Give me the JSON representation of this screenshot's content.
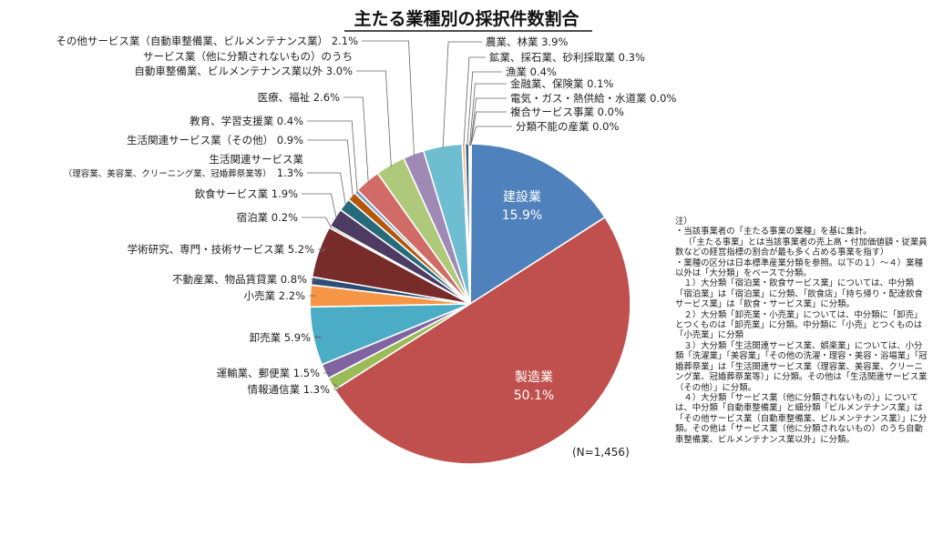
{
  "chart_data": {
    "type": "pie",
    "title": "主たる業種別の採択件数割合",
    "n_label": "(N=1,456)",
    "slices": [
      {
        "label": "建設業",
        "value": 15.9,
        "color": "#4f81bd"
      },
      {
        "label": "製造業",
        "value": 50.1,
        "color": "#c0504d"
      },
      {
        "label": "情報通信業",
        "value": 1.3,
        "color": "#9bbb59"
      },
      {
        "label": "運輸業、郵便業",
        "value": 1.5,
        "color": "#8064a2"
      },
      {
        "label": "卸売業",
        "value": 5.9,
        "color": "#4bacc6"
      },
      {
        "label": "小売業",
        "value": 2.2,
        "color": "#f79646"
      },
      {
        "label": "不動産業、物品賃貸業",
        "value": 0.8,
        "color": "#2c4d75"
      },
      {
        "label": "学術研究、専門・技術サービス業",
        "value": 5.2,
        "color": "#772c2a"
      },
      {
        "label": "宿泊業",
        "value": 0.2,
        "color": "#5f7530"
      },
      {
        "label": "飲食サービス業",
        "value": 1.9,
        "color": "#4d3b62"
      },
      {
        "label": "生活関連サービス業（理容業、美容業、クリーニング業、冠婚葬祭業等）",
        "value": 1.3,
        "color": "#276a7c"
      },
      {
        "label": "生活関連サービス業（その他）",
        "value": 0.9,
        "color": "#b65708"
      },
      {
        "label": "教育、学習支援業",
        "value": 0.4,
        "color": "#729aca"
      },
      {
        "label": "医療、福祉",
        "value": 2.6,
        "color": "#d16b67"
      },
      {
        "label": "サービス業（他に分類されないもの）のうち自動車整備業、ビルメンテナンス業以外",
        "value": 3.0,
        "color": "#afc97a"
      },
      {
        "label": "その他サービス業（自動車整備業、ビルメンテナンス業）",
        "value": 2.1,
        "color": "#9f8ab6"
      },
      {
        "label": "農業、林業",
        "value": 3.9,
        "color": "#6fbdd1"
      },
      {
        "label": "鉱業、採石業、砂利採取業",
        "value": 0.3,
        "color": "#f9ab6b"
      },
      {
        "label": "漁業",
        "value": 0.4,
        "color": "#3a5f8b"
      },
      {
        "label": "金融業、保険業",
        "value": 0.1,
        "color": "#8b3835"
      },
      {
        "label": "電気・ガス・熱供給・水道業",
        "value": 0.0,
        "color": "#718f3a"
      },
      {
        "label": "複合サービス事業",
        "value": 0.0,
        "color": "#5e4a78"
      },
      {
        "label": "分類不能の産業",
        "value": 0.0,
        "color": "#2f8499"
      }
    ],
    "outside_labels": [
      {
        "lines": [
          "その他サービス業（自動車整備業、ビルメンテナンス業） 2.1%"
        ]
      },
      {
        "lines": [
          "サービス業（他に分類されないもの）のうち",
          "自動車整備業、ビルメンテナンス業以外 3.0%"
        ]
      },
      {
        "lines": [
          "医療、福祉 2.6%"
        ]
      },
      {
        "lines": [
          "教育、学習支援業 0.4%"
        ]
      },
      {
        "lines": [
          "生活関連サービス業（その他） 0.9%"
        ]
      },
      {
        "lines": [
          "生活関連サービス業"
        ],
        "small": "（理容業、美容業、クリーニング業、冠婚葬祭業等）",
        "value": "1.3%"
      },
      {
        "lines": [
          "飲食サービス業 1.9%"
        ]
      },
      {
        "lines": [
          "宿泊業 0.2%"
        ]
      },
      {
        "lines": [
          "学術研究、専門・技術サービス業 5.2%"
        ]
      },
      {
        "lines": [
          "不動産業、物品賃貸業 0.8%"
        ]
      },
      {
        "lines": [
          "小売業 2.2%"
        ]
      },
      {
        "lines": [
          "卸売業 5.9%"
        ]
      },
      {
        "lines": [
          "運輸業、郵便業 1.5%"
        ]
      },
      {
        "lines": [
          "情報通信業 1.3%"
        ]
      },
      {
        "lines": [
          "農業、林業 3.9%"
        ]
      },
      {
        "lines": [
          "鉱業、採石業、砂利採取業 0.3%"
        ]
      },
      {
        "lines": [
          "漁業 0.4%"
        ]
      },
      {
        "lines": [
          "金融業、保険業 0.1%"
        ]
      },
      {
        "lines": [
          "電気・ガス・熱供給・水道業 0.0%"
        ]
      },
      {
        "lines": [
          "複合サービス事業 0.0%"
        ]
      },
      {
        "lines": [
          "分類不能の産業 0.0%"
        ]
      }
    ],
    "inside_labels": [
      {
        "name": "建設業",
        "value": "15.9%"
      },
      {
        "name": "製造業",
        "value": "50.1%"
      }
    ]
  },
  "notes": [
    {
      "text": "注）",
      "indent": false
    },
    {
      "text": "・当該事業者の「主たる事業の業種」を基に集計。",
      "indent": false
    },
    {
      "text": "（「主たる事業」とは当該事業者の売上高・付加価値額・従業員数などの経営指標の割合が最も多く占める事業を指す）",
      "indent": true
    },
    {
      "text": "・業種の区分は日本標準産業分類を参照。以下の１）～４）業種以外は「大分類」をベースで分類。",
      "indent": false
    },
    {
      "text": "１）大分類「宿泊業・飲食サービス業」については、中分類「宿泊業」は「宿泊業」に分類、「飲食店」「持ち帰り・配達飲食サービス業」は「飲食・サービス業」に分類。",
      "indent": true
    },
    {
      "text": "２）大分類「卸売業・小売業」については、中分類に「卸売」とつくものは「卸売業」に分類。中分類に「小売」とつくものは「小売業」に分類",
      "indent": true
    },
    {
      "text": "３）大分類「生活関連サービス業、娯楽業」については、小分類「洗濯業」「美容業」「その他の洗濯・理容・美容・浴場業」「冠婚葬祭業」は「生活関連サービス業（理容業、美容業、クリーニング業、冠婚葬祭業等）」に分類。その他は「生活関連サービス業（その他）」に分類。",
      "indent": true
    },
    {
      "text": "４）大分類「サービス業（他に分類されないもの）」については、中分類「自動車整備業」と細分類「ビルメンテナンス業」は「その他サービス業（自動車整備業、ビルメンテナンス業）」に分類。その他は「サービス業（他に分類されないもの）のうち自動車整備業、ビルメンテナンス業以外」に分類。",
      "indent": true
    }
  ]
}
